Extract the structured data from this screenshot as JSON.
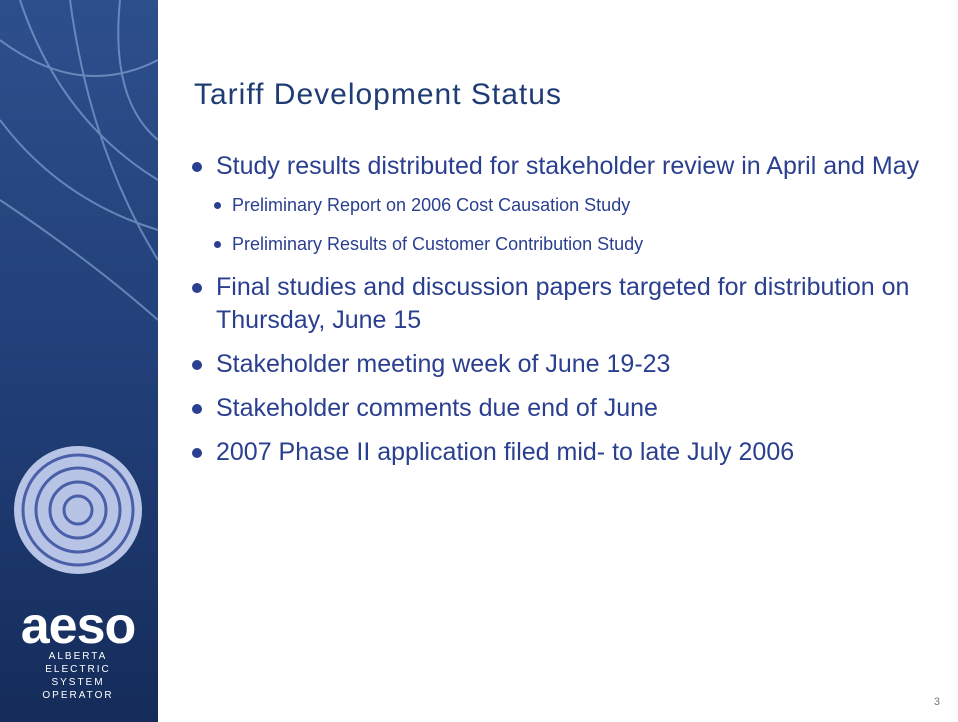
{
  "slide": {
    "title": "Tariff Development Status",
    "bullets": [
      {
        "text": "Study results distributed for stakeholder review in April and May",
        "sub": [
          "Preliminary Report on 2006 Cost Causation Study",
          "Preliminary Results of Customer Contribution Study"
        ]
      },
      {
        "text": "Final studies and discussion papers targeted for distribution on Thursday, June 15",
        "sub": []
      },
      {
        "text": "Stakeholder meeting week of June 19-23",
        "sub": []
      },
      {
        "text": "Stakeholder comments due end of June",
        "sub": []
      },
      {
        "text": "2007 Phase II application filed mid- to late July 2006",
        "sub": []
      }
    ],
    "logo": {
      "name": "aeso",
      "lines": [
        "ALBERTA",
        "ELECTRIC",
        "SYSTEM",
        "OPERATOR"
      ]
    },
    "page_number": "3"
  }
}
